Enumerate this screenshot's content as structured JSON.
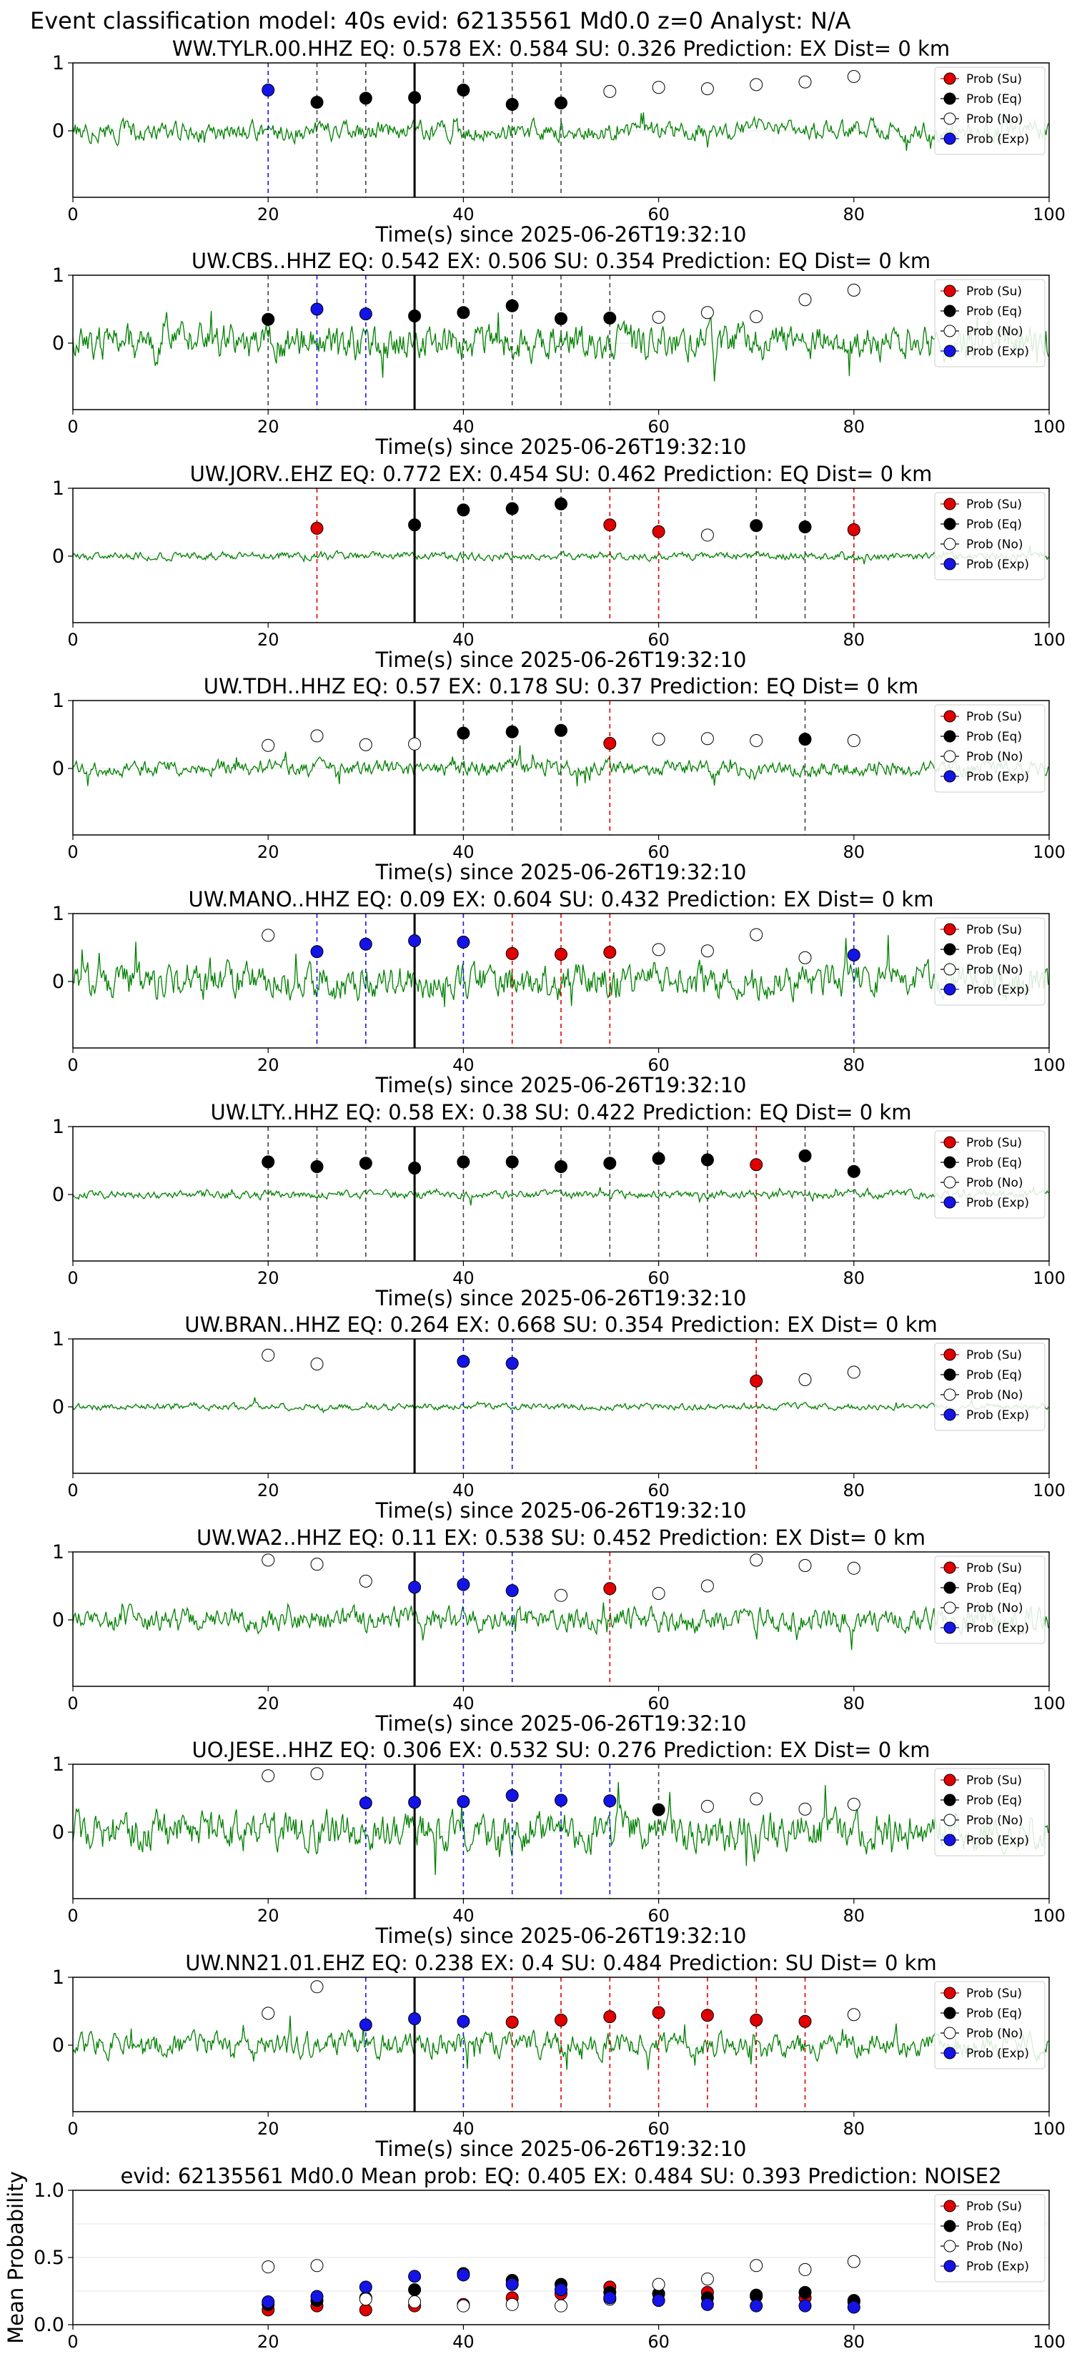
{
  "figure_title": "Event classification model: 40s evid: 62135561 Md0.0 z=0 Analyst: N/A",
  "legend_items": [
    "Prob (Su)",
    "Prob (Eq)",
    "Prob (No)",
    "Prob (Exp)"
  ],
  "colors": {
    "su": "#e00000",
    "eq": "#000000",
    "no": "#ffffff",
    "exp": "#1414e6",
    "wave": "#008000",
    "pick": "#000000"
  },
  "chart_data": [
    {
      "type": "line",
      "title": "WW.TYLR.00.HHZ   EQ: 0.578   EX: 0.584   SU: 0.326   Prediction: EX    Dist= 0 km",
      "xlabel": "Time(s) since 2025-06-26T19:32:10",
      "ylabel": "",
      "xlim": [
        0,
        100
      ],
      "ylim": [
        -1,
        1
      ],
      "xticks": [
        "0",
        "20",
        "40",
        "60",
        "80",
        "100"
      ],
      "yticks": [
        "0",
        "1"
      ],
      "pick_time": 35,
      "waveform_amplitude": 0.25,
      "grid": true,
      "legend": "top-right",
      "points": [
        {
          "t": 20,
          "p": 0.6,
          "c": "exp"
        },
        {
          "t": 25,
          "p": 0.42,
          "c": "eq"
        },
        {
          "t": 30,
          "p": 0.48,
          "c": "eq"
        },
        {
          "t": 35,
          "p": 0.49,
          "c": "eq"
        },
        {
          "t": 40,
          "p": 0.6,
          "c": "eq"
        },
        {
          "t": 45,
          "p": 0.39,
          "c": "eq"
        },
        {
          "t": 50,
          "p": 0.41,
          "c": "eq"
        },
        {
          "t": 55,
          "p": 0.58,
          "c": "no"
        },
        {
          "t": 60,
          "p": 0.64,
          "c": "no"
        },
        {
          "t": 65,
          "p": 0.62,
          "c": "no"
        },
        {
          "t": 70,
          "p": 0.68,
          "c": "no"
        },
        {
          "t": 75,
          "p": 0.72,
          "c": "no"
        },
        {
          "t": 80,
          "p": 0.8,
          "c": "no"
        }
      ]
    },
    {
      "type": "line",
      "title": "UW.CBS..HHZ   EQ: 0.542   EX: 0.506   SU: 0.354   Prediction: EQ    Dist= 0 km",
      "xlabel": "Time(s) since 2025-06-26T19:32:10",
      "ylabel": "",
      "xlim": [
        0,
        100
      ],
      "ylim": [
        -1,
        1
      ],
      "xticks": [
        "0",
        "20",
        "40",
        "60",
        "80",
        "100"
      ],
      "yticks": [
        "0",
        "1"
      ],
      "pick_time": 35,
      "waveform_amplitude": 0.45,
      "grid": true,
      "legend": "top-right",
      "points": [
        {
          "t": 20,
          "p": 0.35,
          "c": "eq"
        },
        {
          "t": 25,
          "p": 0.5,
          "c": "exp"
        },
        {
          "t": 30,
          "p": 0.43,
          "c": "exp"
        },
        {
          "t": 35,
          "p": 0.4,
          "c": "eq"
        },
        {
          "t": 40,
          "p": 0.45,
          "c": "eq"
        },
        {
          "t": 45,
          "p": 0.55,
          "c": "eq"
        },
        {
          "t": 50,
          "p": 0.36,
          "c": "eq"
        },
        {
          "t": 55,
          "p": 0.37,
          "c": "eq"
        },
        {
          "t": 60,
          "p": 0.38,
          "c": "no"
        },
        {
          "t": 65,
          "p": 0.45,
          "c": "no"
        },
        {
          "t": 70,
          "p": 0.39,
          "c": "no"
        },
        {
          "t": 75,
          "p": 0.64,
          "c": "no"
        },
        {
          "t": 80,
          "p": 0.78,
          "c": "no"
        }
      ]
    },
    {
      "type": "line",
      "title": "UW.JORV..EHZ   EQ: 0.772   EX: 0.454   SU: 0.462   Prediction: EQ    Dist= 0 km",
      "xlabel": "Time(s) since 2025-06-26T19:32:10",
      "ylabel": "",
      "xlim": [
        0,
        100
      ],
      "ylim": [
        -1,
        1
      ],
      "xticks": [
        "0",
        "20",
        "40",
        "60",
        "80",
        "100"
      ],
      "yticks": [
        "0",
        "1"
      ],
      "pick_time": 35,
      "waveform_amplitude": 0.1,
      "grid": true,
      "legend": "top-right",
      "points": [
        {
          "t": 25,
          "p": 0.41,
          "c": "su"
        },
        {
          "t": 35,
          "p": 0.46,
          "c": "eq"
        },
        {
          "t": 40,
          "p": 0.68,
          "c": "eq"
        },
        {
          "t": 45,
          "p": 0.7,
          "c": "eq"
        },
        {
          "t": 50,
          "p": 0.77,
          "c": "eq"
        },
        {
          "t": 55,
          "p": 0.46,
          "c": "su"
        },
        {
          "t": 60,
          "p": 0.36,
          "c": "su"
        },
        {
          "t": 65,
          "p": 0.31,
          "c": "no"
        },
        {
          "t": 70,
          "p": 0.45,
          "c": "eq"
        },
        {
          "t": 75,
          "p": 0.43,
          "c": "eq"
        },
        {
          "t": 80,
          "p": 0.39,
          "c": "su"
        }
      ]
    },
    {
      "type": "line",
      "title": "UW.TDH..HHZ   EQ: 0.57   EX: 0.178   SU: 0.37   Prediction: EQ    Dist= 0 km",
      "xlabel": "Time(s) since 2025-06-26T19:32:10",
      "ylabel": "",
      "xlim": [
        0,
        100
      ],
      "ylim": [
        -1,
        1
      ],
      "xticks": [
        "0",
        "20",
        "40",
        "60",
        "80",
        "100"
      ],
      "yticks": [
        "0",
        "1"
      ],
      "pick_time": 35,
      "waveform_amplitude": 0.2,
      "grid": true,
      "legend": "top-right",
      "points": [
        {
          "t": 20,
          "p": 0.34,
          "c": "no"
        },
        {
          "t": 25,
          "p": 0.48,
          "c": "no"
        },
        {
          "t": 30,
          "p": 0.35,
          "c": "no"
        },
        {
          "t": 35,
          "p": 0.36,
          "c": "no"
        },
        {
          "t": 40,
          "p": 0.52,
          "c": "eq"
        },
        {
          "t": 45,
          "p": 0.54,
          "c": "eq"
        },
        {
          "t": 50,
          "p": 0.56,
          "c": "eq"
        },
        {
          "t": 55,
          "p": 0.37,
          "c": "su"
        },
        {
          "t": 60,
          "p": 0.43,
          "c": "no"
        },
        {
          "t": 65,
          "p": 0.44,
          "c": "no"
        },
        {
          "t": 70,
          "p": 0.41,
          "c": "no"
        },
        {
          "t": 75,
          "p": 0.43,
          "c": "eq"
        },
        {
          "t": 80,
          "p": 0.41,
          "c": "no"
        }
      ]
    },
    {
      "type": "line",
      "title": "UW.MANO..HHZ   EQ: 0.09   EX: 0.604   SU: 0.432   Prediction: EX    Dist= 0 km",
      "xlabel": "Time(s) since 2025-06-26T19:32:10",
      "ylabel": "",
      "xlim": [
        0,
        100
      ],
      "ylim": [
        -1,
        1
      ],
      "xticks": [
        "0",
        "20",
        "40",
        "60",
        "80",
        "100"
      ],
      "yticks": [
        "0",
        "1"
      ],
      "pick_time": 35,
      "waveform_amplitude": 0.45,
      "grid": true,
      "legend": "top-right",
      "points": [
        {
          "t": 20,
          "p": 0.68,
          "c": "no"
        },
        {
          "t": 25,
          "p": 0.44,
          "c": "exp"
        },
        {
          "t": 30,
          "p": 0.55,
          "c": "exp"
        },
        {
          "t": 35,
          "p": 0.6,
          "c": "exp"
        },
        {
          "t": 40,
          "p": 0.58,
          "c": "exp"
        },
        {
          "t": 45,
          "p": 0.41,
          "c": "su"
        },
        {
          "t": 50,
          "p": 0.4,
          "c": "su"
        },
        {
          "t": 55,
          "p": 0.43,
          "c": "su"
        },
        {
          "t": 60,
          "p": 0.47,
          "c": "no"
        },
        {
          "t": 65,
          "p": 0.45,
          "c": "no"
        },
        {
          "t": 70,
          "p": 0.69,
          "c": "no"
        },
        {
          "t": 75,
          "p": 0.35,
          "c": "no"
        },
        {
          "t": 80,
          "p": 0.39,
          "c": "exp"
        }
      ]
    },
    {
      "type": "line",
      "title": "UW.LTY..HHZ   EQ: 0.58   EX: 0.38   SU: 0.422   Prediction: EQ    Dist= 0 km",
      "xlabel": "Time(s) since 2025-06-26T19:32:10",
      "ylabel": "",
      "xlim": [
        0,
        100
      ],
      "ylim": [
        -1,
        1
      ],
      "xticks": [
        "0",
        "20",
        "40",
        "60",
        "80",
        "100"
      ],
      "yticks": [
        "0",
        "1"
      ],
      "pick_time": 35,
      "waveform_amplitude": 0.1,
      "grid": true,
      "legend": "top-right",
      "points": [
        {
          "t": 20,
          "p": 0.48,
          "c": "eq"
        },
        {
          "t": 25,
          "p": 0.41,
          "c": "eq"
        },
        {
          "t": 30,
          "p": 0.46,
          "c": "eq"
        },
        {
          "t": 35,
          "p": 0.39,
          "c": "eq"
        },
        {
          "t": 40,
          "p": 0.48,
          "c": "eq"
        },
        {
          "t": 45,
          "p": 0.48,
          "c": "eq"
        },
        {
          "t": 50,
          "p": 0.41,
          "c": "eq"
        },
        {
          "t": 55,
          "p": 0.46,
          "c": "eq"
        },
        {
          "t": 60,
          "p": 0.53,
          "c": "eq"
        },
        {
          "t": 65,
          "p": 0.51,
          "c": "eq"
        },
        {
          "t": 70,
          "p": 0.44,
          "c": "su"
        },
        {
          "t": 75,
          "p": 0.57,
          "c": "eq"
        },
        {
          "t": 80,
          "p": 0.34,
          "c": "eq"
        }
      ]
    },
    {
      "type": "line",
      "title": "UW.BRAN..HHZ   EQ: 0.264   EX: 0.668   SU: 0.354   Prediction: EX    Dist= 0 km",
      "xlabel": "Time(s) since 2025-06-26T19:32:10",
      "ylabel": "",
      "xlim": [
        0,
        100
      ],
      "ylim": [
        -1,
        1
      ],
      "xticks": [
        "0",
        "20",
        "40",
        "60",
        "80",
        "100"
      ],
      "yticks": [
        "0",
        "1"
      ],
      "pick_time": 35,
      "waveform_amplitude": 0.08,
      "grid": true,
      "legend": "top-right",
      "points": [
        {
          "t": 20,
          "p": 0.76,
          "c": "no"
        },
        {
          "t": 25,
          "p": 0.63,
          "c": "no"
        },
        {
          "t": 40,
          "p": 0.67,
          "c": "exp"
        },
        {
          "t": 45,
          "p": 0.64,
          "c": "exp"
        },
        {
          "t": 70,
          "p": 0.38,
          "c": "su"
        },
        {
          "t": 75,
          "p": 0.4,
          "c": "no"
        },
        {
          "t": 80,
          "p": 0.51,
          "c": "no"
        }
      ]
    },
    {
      "type": "line",
      "title": "UW.WA2..HHZ   EQ: 0.11   EX: 0.538   SU: 0.452   Prediction: EX    Dist= 0 km",
      "xlabel": "Time(s) since 2025-06-26T19:32:10",
      "ylabel": "",
      "xlim": [
        0,
        100
      ],
      "ylim": [
        -1,
        1
      ],
      "xticks": [
        "0",
        "20",
        "40",
        "60",
        "80",
        "100"
      ],
      "yticks": [
        "0",
        "1"
      ],
      "pick_time": 35,
      "waveform_amplitude": 0.3,
      "grid": true,
      "legend": "top-right",
      "points": [
        {
          "t": 20,
          "p": 0.88,
          "c": "no"
        },
        {
          "t": 25,
          "p": 0.82,
          "c": "no"
        },
        {
          "t": 30,
          "p": 0.57,
          "c": "no"
        },
        {
          "t": 35,
          "p": 0.48,
          "c": "exp"
        },
        {
          "t": 40,
          "p": 0.52,
          "c": "exp"
        },
        {
          "t": 45,
          "p": 0.43,
          "c": "exp"
        },
        {
          "t": 50,
          "p": 0.36,
          "c": "no"
        },
        {
          "t": 55,
          "p": 0.46,
          "c": "su"
        },
        {
          "t": 60,
          "p": 0.39,
          "c": "no"
        },
        {
          "t": 65,
          "p": 0.5,
          "c": "no"
        },
        {
          "t": 70,
          "p": 0.88,
          "c": "no"
        },
        {
          "t": 75,
          "p": 0.8,
          "c": "no"
        },
        {
          "t": 80,
          "p": 0.76,
          "c": "no"
        }
      ]
    },
    {
      "type": "line",
      "title": "UO.JESE..HHZ   EQ: 0.306   EX: 0.532   SU: 0.276   Prediction: EX    Dist= 0 km",
      "xlabel": "Time(s) since 2025-06-26T19:32:10",
      "ylabel": "",
      "xlim": [
        0,
        100
      ],
      "ylim": [
        -1,
        1
      ],
      "xticks": [
        "0",
        "20",
        "40",
        "60",
        "80",
        "100"
      ],
      "yticks": [
        "0",
        "1"
      ],
      "pick_time": 35,
      "waveform_amplitude": 0.5,
      "grid": true,
      "legend": "top-right",
      "points": [
        {
          "t": 20,
          "p": 0.83,
          "c": "no"
        },
        {
          "t": 25,
          "p": 0.86,
          "c": "no"
        },
        {
          "t": 30,
          "p": 0.43,
          "c": "exp"
        },
        {
          "t": 35,
          "p": 0.44,
          "c": "exp"
        },
        {
          "t": 40,
          "p": 0.45,
          "c": "exp"
        },
        {
          "t": 45,
          "p": 0.54,
          "c": "exp"
        },
        {
          "t": 50,
          "p": 0.47,
          "c": "exp"
        },
        {
          "t": 55,
          "p": 0.46,
          "c": "exp"
        },
        {
          "t": 60,
          "p": 0.33,
          "c": "eq"
        },
        {
          "t": 65,
          "p": 0.38,
          "c": "no"
        },
        {
          "t": 70,
          "p": 0.49,
          "c": "no"
        },
        {
          "t": 75,
          "p": 0.34,
          "c": "no"
        },
        {
          "t": 80,
          "p": 0.41,
          "c": "no"
        }
      ]
    },
    {
      "type": "line",
      "title": "UW.NN21.01.EHZ   EQ: 0.238   EX: 0.4   SU: 0.484   Prediction: SU    Dist= 0 km",
      "xlabel": "Time(s) since 2025-06-26T19:32:10",
      "ylabel": "",
      "xlim": [
        0,
        100
      ],
      "ylim": [
        -1,
        1
      ],
      "xticks": [
        "0",
        "20",
        "40",
        "60",
        "80",
        "100"
      ],
      "yticks": [
        "0",
        "1"
      ],
      "pick_time": 35,
      "waveform_amplitude": 0.3,
      "grid": true,
      "legend": "top-right",
      "points": [
        {
          "t": 20,
          "p": 0.47,
          "c": "no"
        },
        {
          "t": 25,
          "p": 0.86,
          "c": "no"
        },
        {
          "t": 30,
          "p": 0.3,
          "c": "exp"
        },
        {
          "t": 35,
          "p": 0.39,
          "c": "exp"
        },
        {
          "t": 40,
          "p": 0.35,
          "c": "exp"
        },
        {
          "t": 45,
          "p": 0.34,
          "c": "su"
        },
        {
          "t": 50,
          "p": 0.37,
          "c": "su"
        },
        {
          "t": 55,
          "p": 0.42,
          "c": "su"
        },
        {
          "t": 60,
          "p": 0.48,
          "c": "su"
        },
        {
          "t": 65,
          "p": 0.44,
          "c": "su"
        },
        {
          "t": 70,
          "p": 0.37,
          "c": "su"
        },
        {
          "t": 75,
          "p": 0.35,
          "c": "su"
        },
        {
          "t": 80,
          "p": 0.45,
          "c": "no"
        }
      ]
    },
    {
      "type": "scatter",
      "title": "evid: 62135561  Md0.0   Mean prob:   EQ: 0.405  EX: 0.484  SU: 0.393   Prediction: NOISE2",
      "xlabel": "",
      "ylabel": "Mean Probability",
      "xlim": [
        0,
        100
      ],
      "ylim": [
        0,
        1
      ],
      "xticks": [
        "0",
        "20",
        "40",
        "60",
        "80",
        "100"
      ],
      "yticks": [
        "0.0",
        "0.5",
        "1.0"
      ],
      "grid": true,
      "legend": "top-right",
      "series": [
        {
          "name": "Prob (Su)",
          "x": [
            20,
            25,
            30,
            35,
            40,
            45,
            50,
            55,
            60,
            65,
            70,
            75,
            80
          ],
          "y": [
            0.11,
            0.14,
            0.11,
            0.14,
            0.15,
            0.2,
            0.23,
            0.28,
            0.23,
            0.24,
            0.21,
            0.2,
            0.17
          ]
        },
        {
          "name": "Prob (Eq)",
          "x": [
            20,
            25,
            30,
            35,
            40,
            45,
            50,
            55,
            60,
            65,
            70,
            75,
            80
          ],
          "y": [
            0.15,
            0.18,
            0.2,
            0.26,
            0.38,
            0.33,
            0.3,
            0.24,
            0.23,
            0.2,
            0.22,
            0.24,
            0.18
          ]
        },
        {
          "name": "Prob (No)",
          "x": [
            20,
            25,
            30,
            35,
            40,
            45,
            50,
            55,
            60,
            65,
            70,
            75,
            80
          ],
          "y": [
            0.43,
            0.44,
            0.19,
            0.17,
            0.14,
            0.15,
            0.14,
            0.19,
            0.3,
            0.34,
            0.44,
            0.41,
            0.47
          ]
        },
        {
          "name": "Prob (Exp)",
          "x": [
            20,
            25,
            30,
            35,
            40,
            45,
            50,
            55,
            60,
            65,
            70,
            75,
            80
          ],
          "y": [
            0.17,
            0.21,
            0.28,
            0.36,
            0.37,
            0.3,
            0.26,
            0.2,
            0.18,
            0.15,
            0.14,
            0.14,
            0.13
          ]
        }
      ]
    }
  ]
}
